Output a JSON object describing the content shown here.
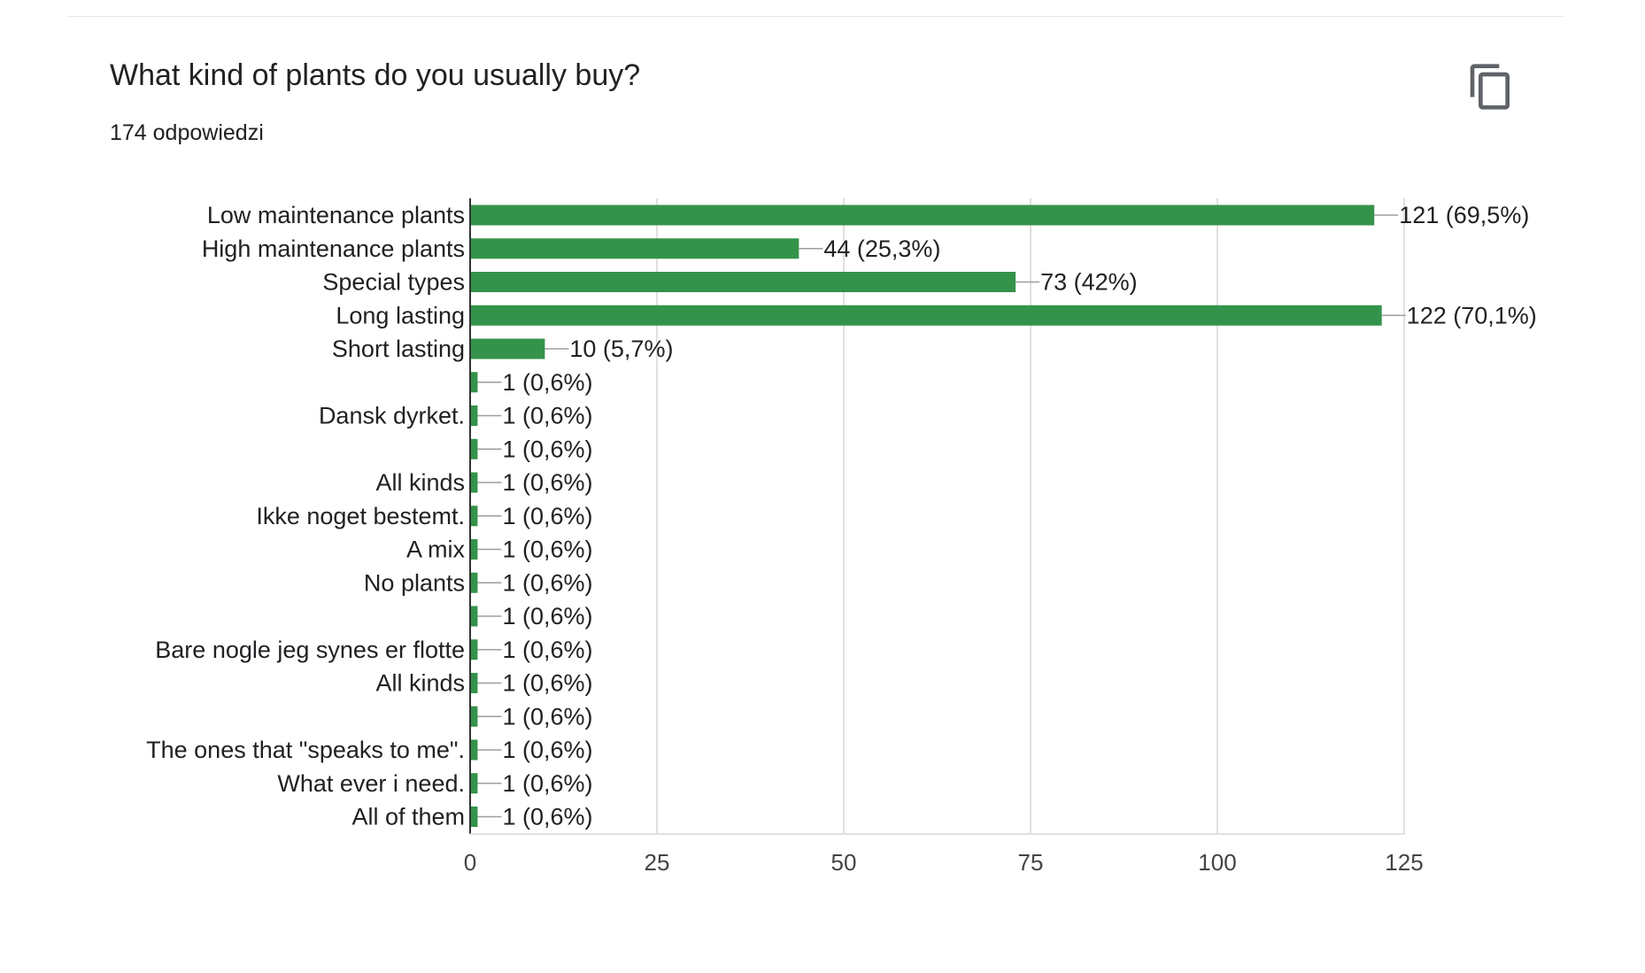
{
  "card": {
    "title": "What kind of plants do you usually buy?",
    "responses": "174 odpowiedzi",
    "copy_icon": "copy-icon"
  },
  "colors": {
    "bar": "#34934a",
    "gridline": "#e0e0e0",
    "axis": "#9e9e9e",
    "text": "#202124"
  },
  "chart_data": {
    "type": "bar",
    "orientation": "horizontal",
    "title": "What kind of plants do you usually buy?",
    "subtitle": "174 odpowiedzi",
    "xlim": [
      0,
      125
    ],
    "xticks": [
      0,
      25,
      50,
      75,
      100,
      125
    ],
    "grid": true,
    "categories": [
      "Low maintenance plants",
      "High maintenance plants",
      "Special types",
      "Long lasting",
      "Short lasting",
      "",
      "Dansk dyrket.",
      "",
      "All kinds",
      "Ikke noget bestemt.",
      "A mix",
      "No plants",
      "",
      "Bare nogle jeg synes er flotte",
      "All kinds",
      "",
      "The ones that \"speaks to me\".",
      "What ever i need.",
      "All of them"
    ],
    "values": [
      121,
      44,
      73,
      122,
      10,
      1,
      1,
      1,
      1,
      1,
      1,
      1,
      1,
      1,
      1,
      1,
      1,
      1,
      1
    ],
    "data_labels": [
      "121 (69,5%)",
      "44 (25,3%)",
      "73 (42%)",
      "122 (70,1%)",
      "10 (5,7%)",
      "1 (0,6%)",
      "1 (0,6%)",
      "1 (0,6%)",
      "1 (0,6%)",
      "1 (0,6%)",
      "1 (0,6%)",
      "1 (0,6%)",
      "1 (0,6%)",
      "1 (0,6%)",
      "1 (0,6%)",
      "1 (0,6%)",
      "1 (0,6%)",
      "1 (0,6%)",
      "1 (0,6%)"
    ]
  }
}
